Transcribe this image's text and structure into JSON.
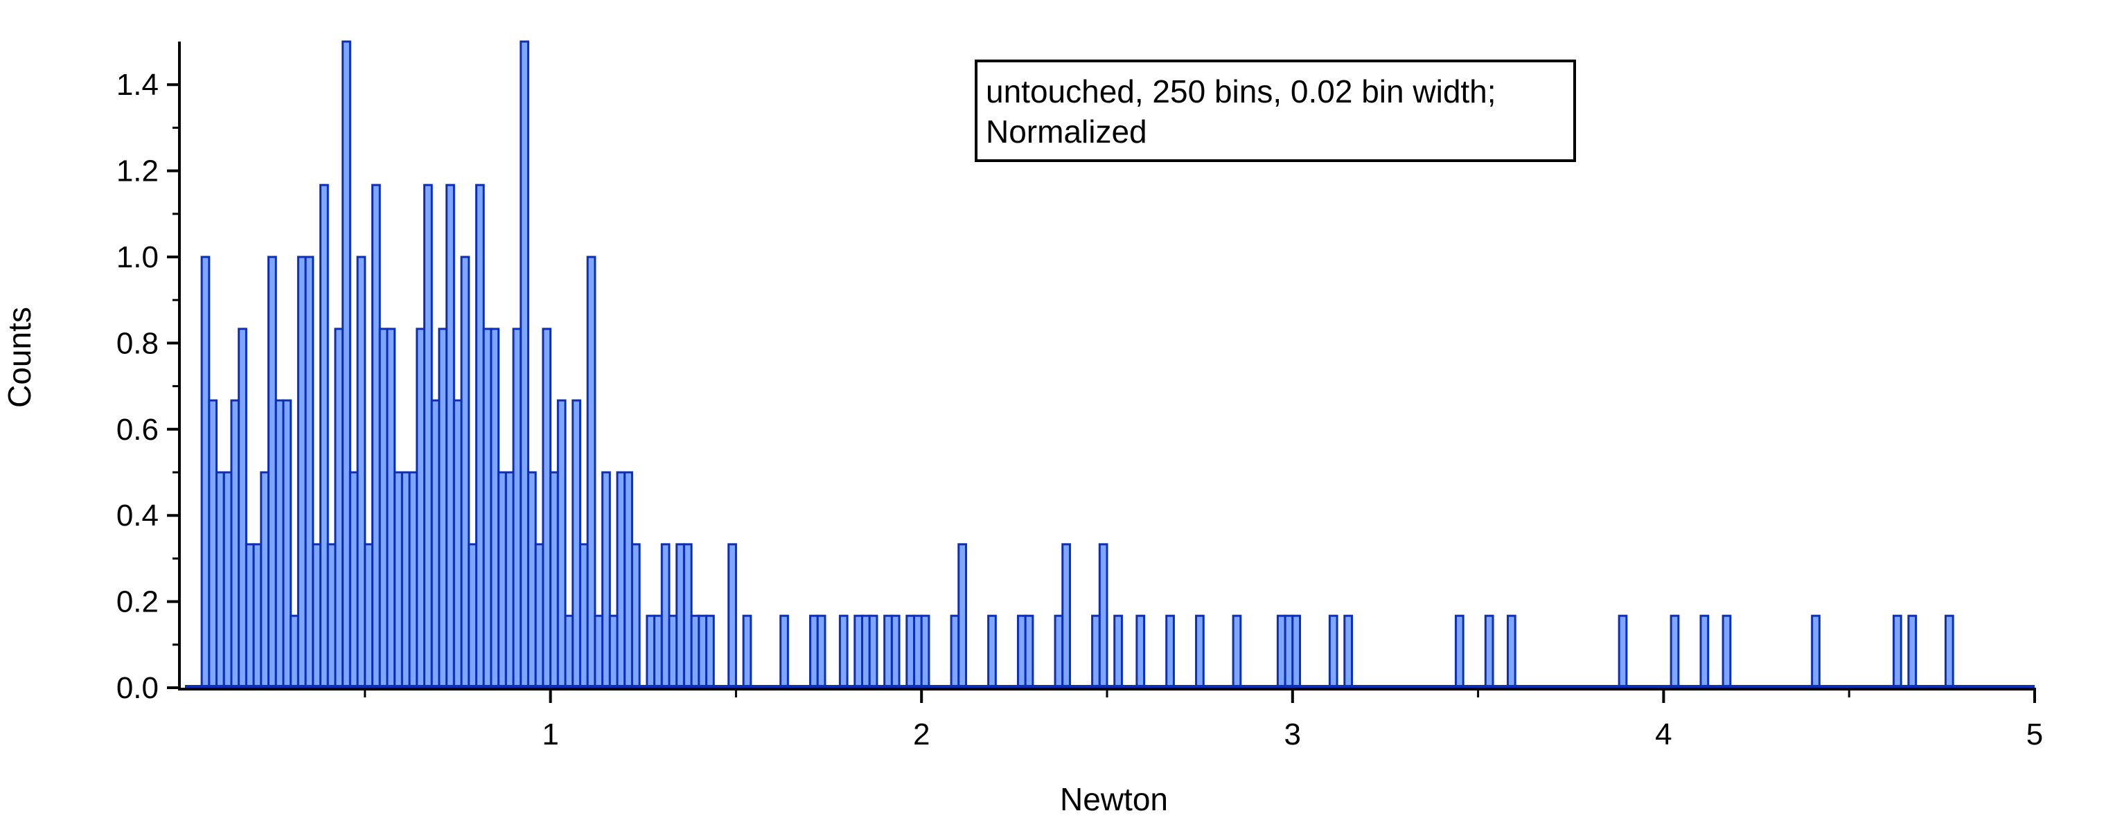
{
  "chart_data": {
    "type": "bar",
    "xlabel": "Newton",
    "ylabel": "Counts",
    "xlim": [
      0,
      5
    ],
    "ylim": [
      0,
      1.5
    ],
    "bin_width": 0.02,
    "x_ticks": [
      "1",
      "2",
      "3",
      "4",
      "5"
    ],
    "y_ticks": [
      "0.0",
      "0.2",
      "0.4",
      "0.6",
      "0.8",
      "1.0",
      "1.2",
      "1.4"
    ],
    "legend": [
      "untouched, 250 bins, 0.02 bin width;",
      "Normalized"
    ],
    "legend_position": "top-center",
    "grid": false,
    "bar_fill": "#7fa7ff",
    "bar_edge": "#0b2fb8",
    "bins": [
      [
        0.06,
        1.0
      ],
      [
        0.08,
        0.667
      ],
      [
        0.1,
        0.5
      ],
      [
        0.12,
        0.5
      ],
      [
        0.14,
        0.667
      ],
      [
        0.16,
        0.833
      ],
      [
        0.18,
        0.333
      ],
      [
        0.2,
        0.333
      ],
      [
        0.22,
        0.5
      ],
      [
        0.24,
        1.0
      ],
      [
        0.26,
        0.667
      ],
      [
        0.28,
        0.667
      ],
      [
        0.3,
        0.167
      ],
      [
        0.32,
        1.0
      ],
      [
        0.34,
        1.0
      ],
      [
        0.36,
        0.333
      ],
      [
        0.38,
        1.167
      ],
      [
        0.4,
        0.333
      ],
      [
        0.42,
        0.833
      ],
      [
        0.44,
        1.5
      ],
      [
        0.46,
        0.5
      ],
      [
        0.48,
        1.0
      ],
      [
        0.5,
        0.333
      ],
      [
        0.52,
        1.167
      ],
      [
        0.54,
        0.833
      ],
      [
        0.56,
        0.833
      ],
      [
        0.58,
        0.5
      ],
      [
        0.6,
        0.5
      ],
      [
        0.62,
        0.5
      ],
      [
        0.64,
        0.833
      ],
      [
        0.66,
        1.167
      ],
      [
        0.68,
        0.667
      ],
      [
        0.7,
        0.833
      ],
      [
        0.72,
        1.167
      ],
      [
        0.74,
        0.667
      ],
      [
        0.76,
        1.0
      ],
      [
        0.78,
        0.333
      ],
      [
        0.8,
        1.167
      ],
      [
        0.82,
        0.833
      ],
      [
        0.84,
        0.833
      ],
      [
        0.86,
        0.5
      ],
      [
        0.88,
        0.5
      ],
      [
        0.9,
        0.833
      ],
      [
        0.92,
        1.5
      ],
      [
        0.94,
        0.5
      ],
      [
        0.96,
        0.333
      ],
      [
        0.98,
        0.833
      ],
      [
        1.0,
        0.5
      ],
      [
        1.02,
        0.667
      ],
      [
        1.04,
        0.167
      ],
      [
        1.06,
        0.667
      ],
      [
        1.08,
        0.333
      ],
      [
        1.1,
        1.0
      ],
      [
        1.12,
        0.167
      ],
      [
        1.14,
        0.5
      ],
      [
        1.16,
        0.167
      ],
      [
        1.18,
        0.5
      ],
      [
        1.2,
        0.5
      ],
      [
        1.22,
        0.333
      ],
      [
        1.26,
        0.167
      ],
      [
        1.28,
        0.167
      ],
      [
        1.3,
        0.333
      ],
      [
        1.32,
        0.167
      ],
      [
        1.34,
        0.333
      ],
      [
        1.36,
        0.333
      ],
      [
        1.38,
        0.167
      ],
      [
        1.4,
        0.167
      ],
      [
        1.42,
        0.167
      ],
      [
        1.48,
        0.333
      ],
      [
        1.52,
        0.167
      ],
      [
        1.62,
        0.167
      ],
      [
        1.7,
        0.167
      ],
      [
        1.72,
        0.167
      ],
      [
        1.78,
        0.167
      ],
      [
        1.82,
        0.167
      ],
      [
        1.84,
        0.167
      ],
      [
        1.86,
        0.167
      ],
      [
        1.9,
        0.167
      ],
      [
        1.92,
        0.167
      ],
      [
        1.96,
        0.167
      ],
      [
        1.98,
        0.167
      ],
      [
        2.0,
        0.167
      ],
      [
        2.08,
        0.167
      ],
      [
        2.1,
        0.333
      ],
      [
        2.18,
        0.167
      ],
      [
        2.26,
        0.167
      ],
      [
        2.28,
        0.167
      ],
      [
        2.36,
        0.167
      ],
      [
        2.38,
        0.333
      ],
      [
        2.46,
        0.167
      ],
      [
        2.48,
        0.333
      ],
      [
        2.52,
        0.167
      ],
      [
        2.58,
        0.167
      ],
      [
        2.66,
        0.167
      ],
      [
        2.74,
        0.167
      ],
      [
        2.84,
        0.167
      ],
      [
        2.96,
        0.167
      ],
      [
        2.98,
        0.167
      ],
      [
        3.0,
        0.167
      ],
      [
        3.1,
        0.167
      ],
      [
        3.14,
        0.167
      ],
      [
        3.44,
        0.167
      ],
      [
        3.52,
        0.167
      ],
      [
        3.58,
        0.167
      ],
      [
        3.88,
        0.167
      ],
      [
        4.02,
        0.167
      ],
      [
        4.1,
        0.167
      ],
      [
        4.16,
        0.167
      ],
      [
        4.4,
        0.167
      ],
      [
        4.62,
        0.167
      ],
      [
        4.66,
        0.167
      ],
      [
        4.76,
        0.167
      ]
    ]
  }
}
